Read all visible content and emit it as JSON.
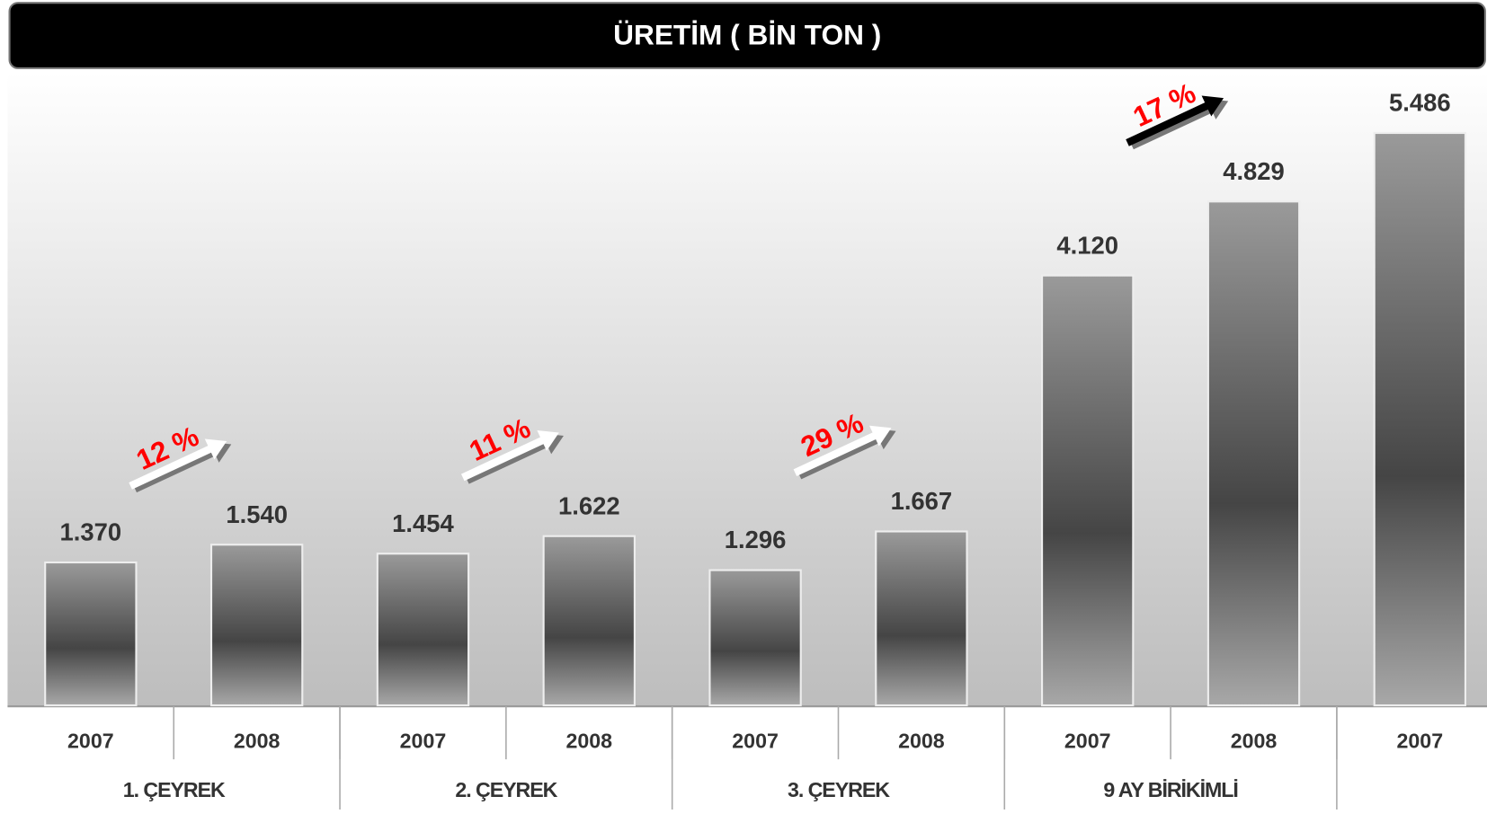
{
  "chart_data": {
    "type": "bar",
    "title": "ÜRETİM ( BİN TON )",
    "categories": [
      "2007",
      "2008",
      "2007",
      "2008",
      "2007",
      "2008",
      "2007",
      "2008",
      "2007"
    ],
    "values": [
      1370,
      1540,
      1454,
      1622,
      1296,
      1667,
      4120,
      4829,
      5486
    ],
    "value_labels": [
      "1.370",
      "1.540",
      "1.454",
      "1.622",
      "1.296",
      "1.667",
      "4.120",
      "4.829",
      "5.486"
    ],
    "groups": [
      "1. ÇEYREK",
      "2. ÇEYREK",
      "3. ÇEYREK",
      "9 AY BİRİKİMLİ",
      null
    ],
    "annotations": [
      {
        "text": "12 %",
        "color": "#ff0000",
        "arrow_color": "#ffffff"
      },
      {
        "text": "11 %",
        "color": "#ff0000",
        "arrow_color": "#ffffff"
      },
      {
        "text": "29 %",
        "color": "#ff0000",
        "arrow_color": "#ffffff"
      },
      {
        "text": "17 %",
        "color": "#ff0000",
        "arrow_color": "#000000"
      }
    ]
  }
}
